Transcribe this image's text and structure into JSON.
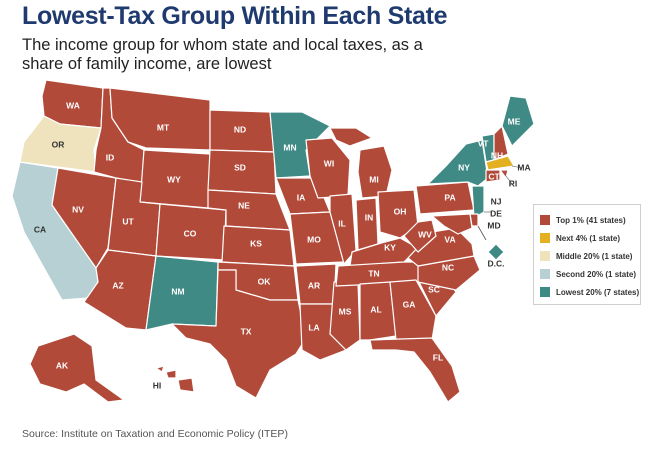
{
  "title": "Lowest-Tax Group Within Each State",
  "subtitle": "The income group for whom state and local taxes, as a share of family income, are lowest",
  "source": "Source: Institute on Taxation and Economic Policy (ITEP)",
  "colors": {
    "top1": "#b24a3a",
    "next4": "#e3b021",
    "middle20": "#efe3bd",
    "second20": "#b7d0d3",
    "lowest20": "#3f8a84"
  },
  "legend": [
    {
      "key": "top1",
      "label": "Top 1% (41 states)"
    },
    {
      "key": "next4",
      "label": "Next 4% (1 state)"
    },
    {
      "key": "middle20",
      "label": "Middle 20% (1 state)"
    },
    {
      "key": "second20",
      "label": "Second 20% (1 state)"
    },
    {
      "key": "lowest20",
      "label": "Lowest 20% (7 states)"
    }
  ],
  "state_groups": {
    "WA": "top1",
    "OR": "middle20",
    "CA": "second20",
    "NV": "top1",
    "ID": "top1",
    "MT": "top1",
    "WY": "top1",
    "UT": "top1",
    "AZ": "top1",
    "CO": "top1",
    "NM": "lowest20",
    "ND": "top1",
    "SD": "top1",
    "NE": "top1",
    "KS": "top1",
    "OK": "top1",
    "TX": "top1",
    "MN": "lowest20",
    "IA": "top1",
    "MO": "top1",
    "AR": "top1",
    "LA": "top1",
    "WI": "top1",
    "IL": "top1",
    "MS": "top1",
    "MI": "top1",
    "IN": "top1",
    "KY": "top1",
    "TN": "top1",
    "AL": "top1",
    "OH": "top1",
    "WV": "top1",
    "VA": "top1",
    "NC": "top1",
    "SC": "top1",
    "GA": "top1",
    "FL": "top1",
    "PA": "top1",
    "NY": "lowest20",
    "VT": "lowest20",
    "ME": "lowest20",
    "NH": "top1",
    "MA": "next4",
    "CT": "top1",
    "RI": "top1",
    "NJ": "lowest20",
    "DE": "top1",
    "MD": "top1",
    "DC": "lowest20",
    "AK": "top1",
    "HI": "top1"
  },
  "labels": {
    "WA": "WA",
    "OR": "OR",
    "CA": "CA",
    "NV": "NV",
    "ID": "ID",
    "MT": "MT",
    "WY": "WY",
    "UT": "UT",
    "AZ": "AZ",
    "CO": "CO",
    "NM": "NM",
    "ND": "ND",
    "SD": "SD",
    "NE": "NE",
    "KS": "KS",
    "OK": "OK",
    "TX": "TX",
    "MN": "MN",
    "IA": "IA",
    "MO": "MO",
    "AR": "AR",
    "LA": "LA",
    "WI": "WI",
    "IL": "IL",
    "MS": "MS",
    "MI": "MI",
    "IN": "IN",
    "KY": "KY",
    "TN": "TN",
    "AL": "AL",
    "OH": "OH",
    "WV": "WV",
    "VA": "VA",
    "NC": "NC",
    "SC": "SC",
    "GA": "GA",
    "FL": "FL",
    "PA": "PA",
    "NY": "NY",
    "VT": "VT",
    "ME": "ME",
    "NH": "NH",
    "MA": "MA",
    "CT": "CT",
    "RI": "RI",
    "NJ": "NJ",
    "DE": "DE",
    "MD": "MD",
    "DC": "D.C.",
    "AK": "AK",
    "HI": "HI"
  }
}
